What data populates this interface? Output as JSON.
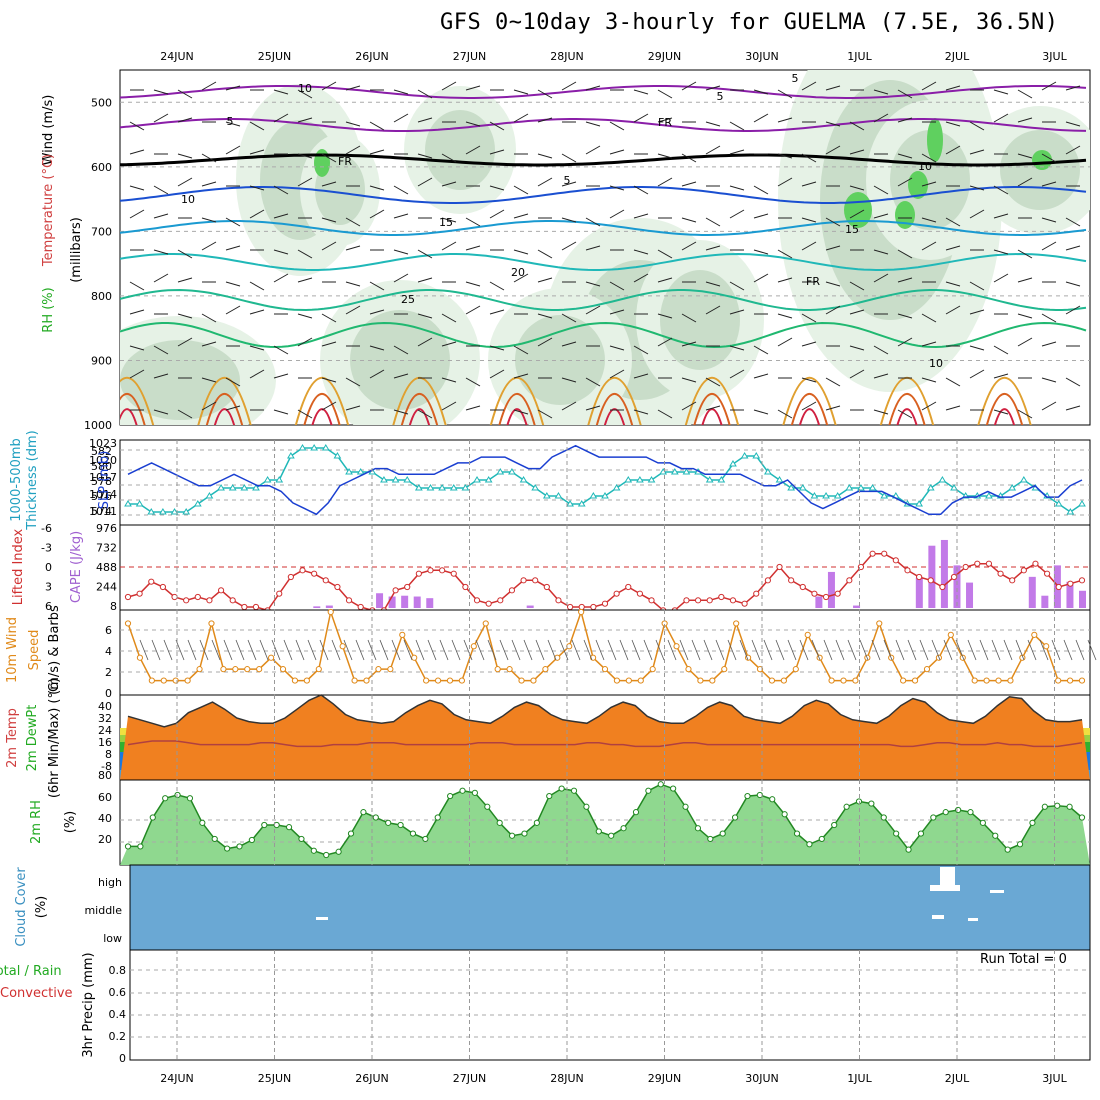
{
  "title": "GFS 0~10day 3-hourly for GUELMA (7.5E, 36.5N)",
  "dates": [
    "24JUN",
    "25JUN",
    "26JUN",
    "27JUN",
    "28JUN",
    "29JUN",
    "30JUN",
    "1JUL",
    "2JUL",
    "3JUL"
  ],
  "colors": {
    "sat": "#6aa8d4",
    "slp": "#1a3fd1",
    "thick": "#20b8b8",
    "li": "#d03030",
    "cape": "#c27ae8",
    "wind": "#e08a1a",
    "rh": "#22cc22"
  },
  "panels": {
    "upper": {
      "labels": [
        "RH (%)",
        "Temperature (°C)",
        "Wind (m/s)",
        "(millibars)"
      ],
      "y_ticks": [
        "500",
        "600",
        "700",
        "800",
        "900",
        "1000"
      ],
      "contour_labels": [
        "10",
        "5",
        "FR",
        "5",
        "5",
        "10",
        "15",
        "20",
        "25",
        "10",
        "15",
        "FR",
        "10",
        "5",
        "FR"
      ]
    },
    "slp": {
      "left_labels": [
        "1000-500mb",
        "Thickness (dm)"
      ],
      "right_label": "SLP (mb)",
      "left_ticks": [
        "582",
        "580",
        "578",
        "576",
        "574"
      ],
      "right_ticks": [
        "1023",
        "1020",
        "1017",
        "1014",
        "1011"
      ]
    },
    "cape": {
      "left_label": "Lifted Index",
      "right_label": "CAPE (J/kg)",
      "left_ticks": [
        "-6",
        "-3",
        "0",
        "3",
        "6"
      ],
      "right_ticks": [
        "976",
        "732",
        "488",
        "244",
        "8"
      ]
    },
    "wind10": {
      "labels": [
        "10m Wind",
        "Speed",
        "(m/s) & Barbs"
      ],
      "ticks": [
        "6",
        "4",
        "2",
        "0"
      ]
    },
    "temp2m": {
      "labels": [
        "2m Temp",
        "2m DewPt",
        "(6hr Min/Max) (°C)"
      ],
      "ticks": [
        "40",
        "32",
        "24",
        "16",
        "8",
        "-8"
      ],
      "extra": "80"
    },
    "rh2m": {
      "labels": [
        "2m RH",
        "(%)"
      ],
      "ticks": [
        "60",
        "40",
        "20"
      ]
    },
    "cloud": {
      "labels": [
        "Cloud Cover",
        "(%)"
      ],
      "ticks": [
        "high",
        "middle",
        "low"
      ]
    },
    "precip": {
      "labels": [
        "Total / Rain",
        "Convective",
        "3hr Precip (mm)"
      ],
      "ticks": [
        "0.8",
        "0.6",
        "0.4",
        "0.2",
        "0"
      ],
      "run_total": "Run Total = 0"
    }
  },
  "chart_data": {
    "type": "meteogram",
    "time_axis": [
      "24JUN",
      "25JUN",
      "26JUN",
      "27JUN",
      "28JUN",
      "29JUN",
      "30JUN",
      "1JUL",
      "2JUL",
      "3JUL"
    ],
    "slp_mb": [
      1018,
      1019,
      1020,
      1019,
      1018,
      1017,
      1016,
      1016,
      1017,
      1018,
      1017,
      1016,
      1016,
      1015,
      1013,
      1012,
      1011,
      1013,
      1016,
      1017,
      1018,
      1019,
      1019,
      1018,
      1018,
      1018,
      1018,
      1019,
      1020,
      1020,
      1021,
      1021,
      1021,
      1020,
      1019,
      1019,
      1021,
      1022,
      1023,
      1022,
      1021,
      1021,
      1021,
      1021,
      1021,
      1020,
      1020,
      1019,
      1019,
      1018,
      1018,
      1018,
      1018,
      1017,
      1016,
      1016,
      1017,
      1015,
      1013,
      1012,
      1013,
      1014,
      1015,
      1015,
      1015,
      1014,
      1013,
      1012,
      1011,
      1011,
      1013,
      1014,
      1014,
      1015,
      1014,
      1014,
      1015,
      1016,
      1014,
      1014,
      1016,
      1017
    ],
    "thickness_dm": [
      575,
      575,
      574,
      574,
      574,
      574,
      575,
      576,
      577,
      577,
      577,
      577,
      578,
      578,
      581,
      582,
      582,
      582,
      581,
      579,
      579,
      579,
      578,
      578,
      578,
      577,
      577,
      577,
      577,
      577,
      578,
      578,
      579,
      579,
      578,
      577,
      576,
      576,
      575,
      575,
      576,
      576,
      577,
      578,
      578,
      578,
      579,
      579,
      579,
      579,
      578,
      578,
      580,
      581,
      581,
      579,
      578,
      577,
      577,
      576,
      576,
      576,
      577,
      577,
      577,
      576,
      576,
      575,
      575,
      577,
      578,
      577,
      576,
      576,
      576,
      576,
      577,
      578,
      577,
      576,
      575,
      574,
      575
    ],
    "lifted_index": [
      4.5,
      4,
      2.2,
      3,
      4.5,
      5,
      4.5,
      5,
      3.5,
      5,
      6,
      6,
      6.5,
      4,
      1.5,
      0.5,
      1,
      2,
      3,
      5,
      6,
      6.5,
      6.5,
      3.5,
      3,
      1,
      0.5,
      0.5,
      1,
      3,
      5,
      5.5,
      5,
      3.5,
      2,
      2,
      3,
      5,
      6,
      6,
      6,
      5.5,
      4,
      3,
      4,
      5,
      6.5,
      6.5,
      5,
      5,
      5,
      4.5,
      5,
      5.5,
      4,
      2,
      0,
      2,
      3,
      4,
      4.5,
      4,
      2,
      0,
      -2,
      -2,
      -1,
      0.5,
      1.5,
      2,
      3,
      1.5,
      0,
      -0.5,
      -0.5,
      1,
      2,
      0.5,
      -0.5,
      1,
      3,
      2.5,
      2
    ],
    "cape_jkg": [
      0,
      0,
      0,
      0,
      0,
      0,
      0,
      0,
      0,
      0,
      0,
      0,
      0,
      0,
      0,
      20,
      30,
      0,
      0,
      0,
      180,
      140,
      150,
      140,
      120,
      0,
      0,
      0,
      0,
      0,
      0,
      0,
      30,
      0,
      0,
      0,
      0,
      0,
      0,
      0,
      0,
      0,
      0,
      0,
      0,
      0,
      0,
      0,
      0,
      0,
      0,
      0,
      0,
      0,
      0,
      140,
      440,
      0,
      30,
      0,
      0,
      0,
      0,
      370,
      760,
      830,
      520,
      310,
      0,
      0,
      0,
      0,
      380,
      150,
      520,
      320,
      210
    ],
    "wind10m_ms": [
      6,
      3,
      1,
      1,
      1,
      1,
      2,
      6,
      2,
      2,
      2,
      2,
      3,
      2,
      1,
      1,
      2,
      7,
      4,
      1,
      1,
      2,
      2,
      5,
      3,
      1,
      1,
      1,
      1,
      4,
      6,
      2,
      2,
      1,
      1,
      2,
      3,
      4,
      7,
      3,
      2,
      1,
      1,
      1,
      2,
      6,
      4,
      2,
      1,
      1,
      2,
      6,
      3,
      2,
      1,
      1,
      2,
      5,
      3,
      1,
      1,
      1,
      3,
      6,
      3,
      1,
      1,
      2,
      3,
      5,
      3,
      1,
      1,
      1,
      1,
      3,
      5,
      4,
      1,
      1,
      1
    ],
    "temp2m_c": [
      28,
      26,
      24,
      22,
      24,
      30,
      33,
      36,
      32,
      27,
      25,
      24,
      24,
      27,
      32,
      37,
      40,
      35,
      29,
      26,
      25,
      24,
      25,
      30,
      34,
      37,
      35,
      29,
      26,
      25,
      24,
      28,
      33,
      36,
      34,
      29,
      26,
      25,
      24,
      28,
      33,
      36,
      34,
      28,
      25,
      24,
      24,
      28,
      33,
      36,
      34,
      28,
      26,
      25,
      24,
      28,
      34,
      37,
      35,
      29,
      26,
      25,
      24,
      28,
      34,
      38,
      36,
      30,
      26,
      25,
      24,
      28,
      34,
      39,
      38,
      31,
      26,
      25,
      25,
      26
    ],
    "dewpt2m_c": [
      12,
      13,
      14,
      14,
      14,
      13,
      12,
      12,
      12,
      12,
      12,
      13,
      13,
      12,
      11,
      11,
      11,
      12,
      12,
      12,
      13,
      13,
      13,
      12,
      12,
      12,
      12,
      12,
      12,
      13,
      13,
      13,
      12,
      12,
      12,
      12,
      12,
      12,
      13,
      13,
      12,
      12,
      11,
      11,
      11,
      12,
      13,
      13,
      12,
      12,
      12,
      12,
      12,
      12,
      12,
      12,
      12,
      12,
      12,
      12,
      12,
      12,
      12,
      12,
      11,
      11,
      12,
      13,
      13,
      12,
      12,
      12,
      13,
      12,
      12,
      11,
      11,
      11,
      12,
      13
    ],
    "rh2m_pct": [
      18,
      18,
      45,
      63,
      66,
      63,
      40,
      25,
      16,
      18,
      24,
      38,
      38,
      36,
      25,
      14,
      10,
      13,
      30,
      50,
      45,
      40,
      38,
      30,
      25,
      45,
      65,
      70,
      68,
      55,
      40,
      28,
      30,
      40,
      65,
      72,
      70,
      55,
      32,
      28,
      35,
      50,
      70,
      76,
      72,
      55,
      35,
      25,
      30,
      45,
      65,
      66,
      62,
      48,
      30,
      20,
      25,
      38,
      55,
      60,
      58,
      45,
      30,
      15,
      30,
      45,
      50,
      52,
      50,
      40,
      28,
      15,
      20,
      40,
      55,
      56,
      55,
      45
    ]
  }
}
